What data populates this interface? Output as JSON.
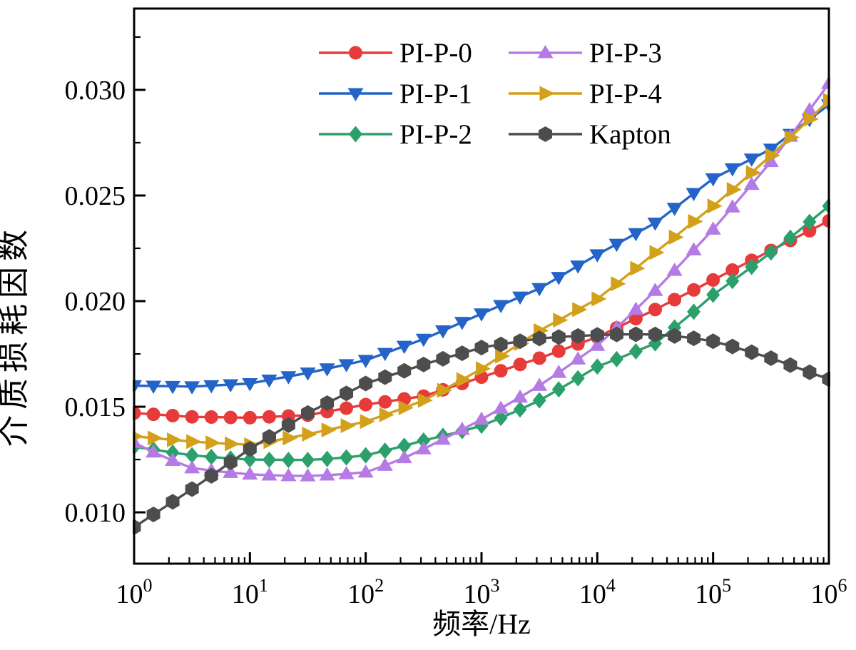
{
  "chart_data": {
    "type": "line",
    "x_scale": "log",
    "xlabel": "频率/Hz",
    "ylabel": "介质损耗因数",
    "xlim": [
      1,
      1000000
    ],
    "ylim": [
      0.00757,
      0.03385
    ],
    "grid": false,
    "legend_position": "top-center",
    "legend_columns": 2,
    "x_axis": {
      "tick_base": "10",
      "tick_exponents": [
        0,
        1,
        2,
        3,
        4,
        5,
        6
      ],
      "minor_ticks_per_decade": [
        2,
        3,
        4,
        5,
        6,
        7,
        8,
        9
      ]
    },
    "y_axis": {
      "tick_values": [
        0.01,
        0.015,
        0.02,
        0.025,
        0.03
      ],
      "tick_labels": [
        "0.010",
        "0.015",
        "0.020",
        "0.025",
        "0.030"
      ],
      "minor_tick_values": [
        0.0125,
        0.0175,
        0.0225,
        0.0275,
        0.0325
      ]
    },
    "log10_x": [
      0,
      0.167,
      0.333,
      0.5,
      0.667,
      0.833,
      1,
      1.167,
      1.333,
      1.5,
      1.667,
      1.833,
      2,
      2.167,
      2.333,
      2.5,
      2.667,
      2.833,
      3,
      3.167,
      3.333,
      3.5,
      3.667,
      3.833,
      4,
      4.167,
      4.333,
      4.5,
      4.667,
      4.833,
      5,
      5.167,
      5.333,
      5.5,
      5.667,
      5.833,
      6
    ],
    "series": [
      {
        "name": "PI-P-0",
        "color": "#e73b3b",
        "marker": "circle",
        "values": [
          0.0147,
          0.01464,
          0.01458,
          0.01452,
          0.01451,
          0.01449,
          0.01448,
          0.01452,
          0.01456,
          0.0146,
          0.01477,
          0.01493,
          0.0151,
          0.01523,
          0.01537,
          0.0155,
          0.0158,
          0.0161,
          0.0164,
          0.0167,
          0.017,
          0.0173,
          0.01763,
          0.01797,
          0.0183,
          0.01873,
          0.01917,
          0.0196,
          0.02007,
          0.02053,
          0.021,
          0.02147,
          0.02193,
          0.0224,
          0.02287,
          0.02333,
          0.0238
        ]
      },
      {
        "name": "PI-P-1",
        "color": "#2464c8",
        "marker": "triangle-down",
        "values": [
          0.016,
          0.01598,
          0.01597,
          0.01595,
          0.016,
          0.01605,
          0.0161,
          0.01627,
          0.01643,
          0.0166,
          0.0168,
          0.017,
          0.0172,
          0.01753,
          0.01787,
          0.0182,
          0.0186,
          0.019,
          0.0194,
          0.0198,
          0.0202,
          0.0206,
          0.02113,
          0.02167,
          0.0222,
          0.0227,
          0.0232,
          0.0237,
          0.0244,
          0.0251,
          0.0258,
          0.02627,
          0.02673,
          0.0272,
          0.0279,
          0.0286,
          0.0293
        ]
      },
      {
        "name": "PI-P-2",
        "color": "#2ba06b",
        "marker": "diamond",
        "values": [
          0.0131,
          0.01297,
          0.01283,
          0.0127,
          0.01262,
          0.01255,
          0.0125,
          0.01249,
          0.01248,
          0.01248,
          0.01253,
          0.0126,
          0.0127,
          0.01292,
          0.01315,
          0.0134,
          0.01362,
          0.01385,
          0.0141,
          0.01447,
          0.01487,
          0.0153,
          0.01582,
          0.01635,
          0.0169,
          0.01725,
          0.01762,
          0.018,
          0.01875,
          0.0195,
          0.0203,
          0.02095,
          0.02162,
          0.0223,
          0.023,
          0.02375,
          0.0245
        ]
      },
      {
        "name": "PI-P-3",
        "color": "#b57be4",
        "marker": "triangle-up",
        "values": [
          0.0133,
          0.01285,
          0.01245,
          0.0121,
          0.01198,
          0.01188,
          0.0118,
          0.01176,
          0.01173,
          0.01172,
          0.01176,
          0.01182,
          0.0119,
          0.01222,
          0.01258,
          0.013,
          0.01345,
          0.01392,
          0.0144,
          0.01492,
          0.01545,
          0.016,
          0.01662,
          0.01725,
          0.0179,
          0.01873,
          0.0196,
          0.0205,
          0.02145,
          0.02242,
          0.0234,
          0.02445,
          0.02552,
          0.0266,
          0.0278,
          0.02905,
          0.0303
        ]
      },
      {
        "name": "PI-P-4",
        "color": "#d2a019",
        "marker": "triangle-right",
        "values": [
          0.0136,
          0.01352,
          0.01343,
          0.01335,
          0.01329,
          0.01324,
          0.0132,
          0.01335,
          0.01352,
          0.0137,
          0.0139,
          0.0141,
          0.0143,
          0.01462,
          0.01495,
          0.0153,
          0.01578,
          0.01628,
          0.0168,
          0.0174,
          0.018,
          0.0186,
          0.0191,
          0.0196,
          0.0201,
          0.02082,
          0.02155,
          0.0223,
          0.02303,
          0.02377,
          0.0245,
          0.02528,
          0.02608,
          0.0269,
          0.02775,
          0.02862,
          0.0295
        ]
      },
      {
        "name": "Kapton",
        "color": "#4d4d4d",
        "marker": "hexagon",
        "values": [
          0.0093,
          0.0099,
          0.0105,
          0.0111,
          0.01173,
          0.01237,
          0.013,
          0.01357,
          0.01413,
          0.0147,
          0.01517,
          0.01563,
          0.0161,
          0.0164,
          0.0167,
          0.017,
          0.01727,
          0.01753,
          0.0178,
          0.01795,
          0.0181,
          0.01823,
          0.0183,
          0.01835,
          0.0184,
          0.01842,
          0.01843,
          0.01842,
          0.01835,
          0.01824,
          0.0181,
          0.01785,
          0.01758,
          0.0173,
          0.01697,
          0.01663,
          0.0163
        ]
      }
    ]
  }
}
